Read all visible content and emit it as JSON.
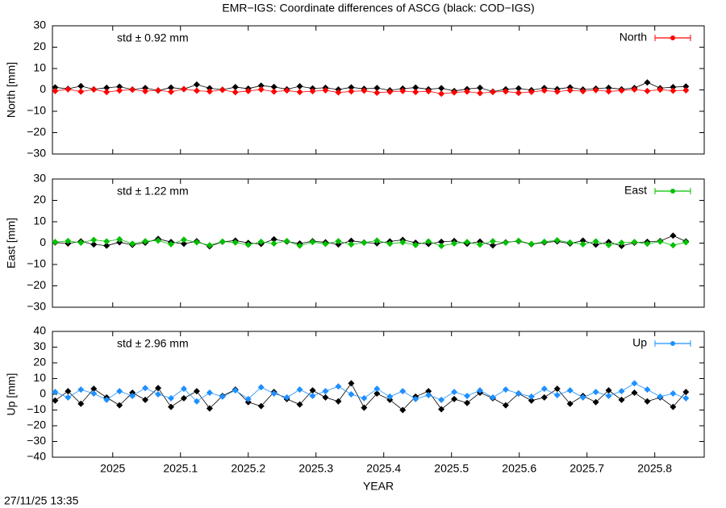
{
  "footer": "27/11/25 13:35",
  "chart_data": [
    {
      "type": "scatter",
      "title": "EMR−IGS: Coordinate differences of ASCG (black: COD−IGS)",
      "ylabel": "North [mm]",
      "annotation": "std ± 0.92 mm",
      "xlim": [
        2024.911,
        2025.873
      ],
      "ylim": [
        -30,
        30
      ],
      "yticks": [
        {
          "value": -30,
          "label": "−30"
        },
        {
          "value": -20,
          "label": "−20"
        },
        {
          "value": -10,
          "label": "−10"
        },
        0,
        10,
        20,
        30
      ],
      "x": [
        2024.915,
        2024.934,
        2024.953,
        2024.972,
        2024.991,
        2025.01,
        2025.029,
        2025.048,
        2025.067,
        2025.086,
        2025.105,
        2025.124,
        2025.143,
        2025.162,
        2025.181,
        2025.2,
        2025.219,
        2025.238,
        2025.257,
        2025.276,
        2025.295,
        2025.314,
        2025.333,
        2025.352,
        2025.371,
        2025.39,
        2025.409,
        2025.428,
        2025.447,
        2025.466,
        2025.485,
        2025.504,
        2025.523,
        2025.542,
        2025.561,
        2025.58,
        2025.599,
        2025.618,
        2025.637,
        2025.656,
        2025.675,
        2025.694,
        2025.713,
        2025.732,
        2025.751,
        2025.77,
        2025.789,
        2025.808,
        2025.827,
        2025.846
      ],
      "series": [
        {
          "color": "#000000",
          "values": [
            1.2,
            0.5,
            1.8,
            0.3,
            1.0,
            1.5,
            0.2,
            0.9,
            -0.3,
            1.1,
            0.4,
            2.5,
            0.8,
            0.1,
            1.3,
            0.6,
            2.0,
            1.4,
            0.3,
            1.7,
            0.7,
            1.0,
            0.2,
            1.2,
            0.5,
            0.9,
            -0.2,
            0.6,
            1.1,
            0.3,
            0.8,
            -0.5,
            0.4,
            1.0,
            -0.8,
            0.3,
            0.7,
            -0.1,
            0.9,
            0.4,
            1.2,
            0.2,
            0.6,
            1.0,
            0.3,
            0.9,
            3.5,
            0.8,
            1.3,
            1.6
          ]
        },
        {
          "name": "North",
          "color": "#ff0000",
          "values": [
            -0.5,
            0.3,
            -0.8,
            0.2,
            -1.0,
            -0.3,
            0.1,
            -0.6,
            -0.2,
            -0.9,
            0.4,
            -0.4,
            -0.7,
            0.0,
            -1.1,
            -0.5,
            0.2,
            -0.8,
            -0.3,
            -1.0,
            -0.6,
            -0.2,
            -1.2,
            -0.7,
            -0.4,
            -1.3,
            -0.9,
            -0.5,
            -1.0,
            -0.6,
            -1.8,
            -1.2,
            -0.8,
            -1.5,
            -1.0,
            -0.7,
            -1.4,
            -0.9,
            -0.3,
            -0.8,
            -0.2,
            -0.6,
            -0.1,
            -0.7,
            -0.3,
            0.2,
            -0.5,
            0.1,
            -0.4,
            -0.2
          ]
        }
      ]
    },
    {
      "type": "scatter",
      "ylabel": "East [mm]",
      "annotation": "std ± 1.22 mm",
      "xlim": [
        2024.911,
        2025.873
      ],
      "ylim": [
        -30,
        30
      ],
      "yticks": [
        {
          "value": -30,
          "label": "−30"
        },
        {
          "value": -20,
          "label": "−20"
        },
        {
          "value": -10,
          "label": "−10"
        },
        0,
        10,
        20,
        30
      ],
      "x": [
        2024.915,
        2024.934,
        2024.953,
        2024.972,
        2024.991,
        2025.01,
        2025.029,
        2025.048,
        2025.067,
        2025.086,
        2025.105,
        2025.124,
        2025.143,
        2025.162,
        2025.181,
        2025.2,
        2025.219,
        2025.238,
        2025.257,
        2025.276,
        2025.295,
        2025.314,
        2025.333,
        2025.352,
        2025.371,
        2025.39,
        2025.409,
        2025.428,
        2025.447,
        2025.466,
        2025.485,
        2025.504,
        2025.523,
        2025.542,
        2025.561,
        2025.58,
        2025.599,
        2025.618,
        2025.637,
        2025.656,
        2025.675,
        2025.694,
        2025.713,
        2025.732,
        2025.751,
        2025.77,
        2025.789,
        2025.808,
        2025.827,
        2025.846
      ],
      "series": [
        {
          "color": "#000000",
          "values": [
            0.3,
            -0.2,
            0.8,
            -0.6,
            -1.2,
            0.4,
            -0.8,
            0.2,
            2.0,
            0.5,
            -0.3,
            0.9,
            -1.5,
            0.6,
            1.2,
            0.1,
            -0.4,
            1.8,
            0.7,
            -0.2,
            0.9,
            0.4,
            -0.6,
            1.1,
            0.3,
            -0.1,
            0.8,
            1.5,
            0.2,
            -0.4,
            0.6,
            1.0,
            -0.3,
            0.7,
            -1.1,
            0.4,
            0.9,
            -0.5,
            0.3,
            0.8,
            -0.2,
            1.2,
            -0.7,
            0.5,
            -1.3,
            0.2,
            0.6,
            1.0,
            3.5,
            0.8
          ]
        },
        {
          "name": "East",
          "color": "#00c000",
          "values": [
            0.5,
            1.0,
            0.2,
            1.5,
            0.8,
            1.8,
            -0.3,
            0.9,
            1.2,
            -0.5,
            1.6,
            0.4,
            -1.0,
            0.7,
            0.3,
            -0.8,
            0.6,
            -0.2,
            1.0,
            -1.2,
            0.5,
            -0.4,
            0.9,
            -0.6,
            0.2,
            1.2,
            -0.3,
            0.4,
            -0.9,
            0.8,
            -1.3,
            -0.2,
            0.5,
            -0.7,
            0.9,
            0.2,
            1.1,
            -0.4,
            0.6,
            1.3,
            0.3,
            -0.5,
            0.8,
            -0.9,
            0.2,
            0.5,
            -0.3,
            0.7,
            -1.0,
            0.4
          ]
        }
      ]
    },
    {
      "type": "scatter",
      "ylabel": "Up [mm]",
      "xlabel": "YEAR",
      "annotation": "std ± 2.96 mm",
      "xlim": [
        2024.911,
        2025.873
      ],
      "ylim": [
        -40,
        40
      ],
      "yticks": [
        {
          "value": -40,
          "label": "−40"
        },
        {
          "value": -30,
          "label": "−30"
        },
        {
          "value": -20,
          "label": "−20"
        },
        {
          "value": -10,
          "label": "−10"
        },
        0,
        10,
        20,
        30,
        40
      ],
      "xticks": [
        2025,
        2025.1,
        2025.2,
        2025.3,
        2025.4,
        2025.5,
        2025.6,
        2025.7,
        2025.8
      ],
      "x": [
        2024.915,
        2024.934,
        2024.953,
        2024.972,
        2024.991,
        2025.01,
        2025.029,
        2025.048,
        2025.067,
        2025.086,
        2025.105,
        2025.124,
        2025.143,
        2025.162,
        2025.181,
        2025.2,
        2025.219,
        2025.238,
        2025.257,
        2025.276,
        2025.295,
        2025.314,
        2025.333,
        2025.352,
        2025.371,
        2025.39,
        2025.409,
        2025.428,
        2025.447,
        2025.466,
        2025.485,
        2025.504,
        2025.523,
        2025.542,
        2025.561,
        2025.58,
        2025.599,
        2025.618,
        2025.637,
        2025.656,
        2025.675,
        2025.694,
        2025.713,
        2025.732,
        2025.751,
        2025.77,
        2025.789,
        2025.808,
        2025.827,
        2025.846
      ],
      "series": [
        {
          "color": "#000000",
          "values": [
            -4.0,
            2.0,
            -6.0,
            3.5,
            -2.0,
            -7.0,
            1.0,
            -3.5,
            4.0,
            -8.0,
            -2.5,
            2.0,
            -9.0,
            -1.0,
            3.0,
            -5.0,
            -7.5,
            1.5,
            -3.0,
            -6.5,
            2.5,
            -2.0,
            -4.5,
            7.0,
            -8.5,
            0.5,
            -3.5,
            -10.0,
            -1.5,
            2.0,
            -9.5,
            -3.0,
            -5.5,
            1.0,
            -2.5,
            -7.0,
            0.5,
            -4.0,
            -2.0,
            3.5,
            -6.0,
            -1.0,
            -5.0,
            2.5,
            -3.5,
            1.0,
            -4.5,
            -2.0,
            -8.0,
            1.5
          ]
        },
        {
          "name": "Up",
          "color": "#1e90ff",
          "values": [
            1.5,
            -2.0,
            3.0,
            0.5,
            -3.5,
            2.0,
            -1.0,
            4.0,
            0.0,
            -2.5,
            3.5,
            -4.5,
            1.0,
            -1.5,
            2.5,
            -3.0,
            4.5,
            0.5,
            -2.0,
            3.0,
            -1.0,
            2.0,
            5.0,
            0.0,
            -2.5,
            3.5,
            -1.5,
            2.0,
            -3.0,
            -0.5,
            -3.5,
            1.5,
            -1.0,
            2.5,
            -2.0,
            3.0,
            0.5,
            -1.5,
            3.5,
            -0.5,
            2.5,
            -2.0,
            1.5,
            -1.0,
            2.0,
            7.0,
            3.0,
            -1.5,
            0.5,
            -2.5
          ]
        }
      ]
    }
  ]
}
